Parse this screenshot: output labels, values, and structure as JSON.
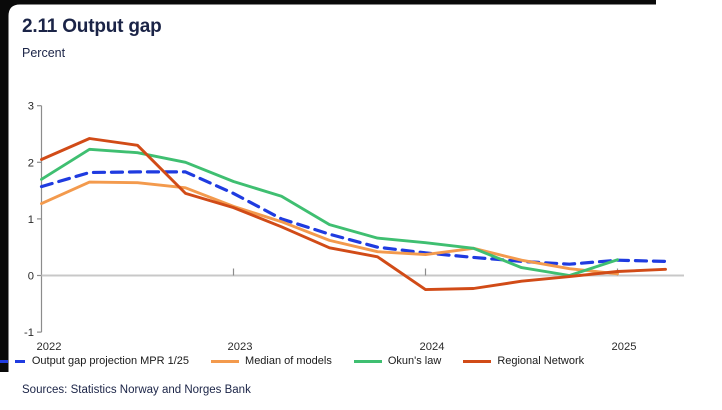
{
  "header": {
    "title": "2.11 Output gap",
    "subtitle": "Percent"
  },
  "footer": {
    "source": "Sources: Statistics Norway and Norges Bank"
  },
  "chart_data": {
    "type": "line",
    "title": "2.11 Output gap",
    "ylabel": "Percent",
    "xlabel": "",
    "ylim": [
      -1,
      3
    ],
    "grid": "zero-line-only",
    "legend_position": "bottom",
    "x_frequency": "quarterly",
    "ytick_labels": [
      "3",
      "2",
      "1",
      "0",
      "-1"
    ],
    "yticks": [
      3,
      2,
      1,
      0,
      -1
    ],
    "xtick_labels": [
      "2022",
      "2023",
      "2024",
      "2025"
    ],
    "xticks": [
      2022,
      2023,
      2024,
      2025
    ],
    "x": [
      2022.0,
      2022.25,
      2022.5,
      2022.75,
      2023.0,
      2023.25,
      2023.5,
      2023.75,
      2024.0,
      2024.25,
      2024.5,
      2024.75,
      2025.0,
      2025.25
    ],
    "series": [
      {
        "name": "Output gap projection MPR 1/25",
        "color": "#1f3be0",
        "style": "dashed",
        "values": [
          1.57,
          1.82,
          1.83,
          1.83,
          1.45,
          1.0,
          0.73,
          0.5,
          0.4,
          0.32,
          0.25,
          0.2,
          0.27,
          0.25
        ]
      },
      {
        "name": "Median of models",
        "color": "#f39a4d",
        "style": "solid",
        "values": [
          1.27,
          1.65,
          1.64,
          1.55,
          1.22,
          0.95,
          0.62,
          0.42,
          0.37,
          0.48,
          0.27,
          0.12,
          0.03
        ]
      },
      {
        "name": "Okun's law",
        "color": "#3fbf71",
        "style": "solid",
        "values": [
          1.7,
          2.23,
          2.17,
          2.0,
          1.66,
          1.4,
          0.9,
          0.66,
          0.58,
          0.48,
          0.14,
          0.0,
          0.28
        ]
      },
      {
        "name": "Regional Network",
        "color": "#d14b17",
        "style": "solid",
        "values": [
          2.05,
          2.42,
          2.3,
          1.45,
          1.2,
          0.86,
          0.49,
          0.33,
          -0.25,
          -0.23,
          -0.1,
          -0.02,
          0.07,
          0.11
        ]
      }
    ]
  }
}
